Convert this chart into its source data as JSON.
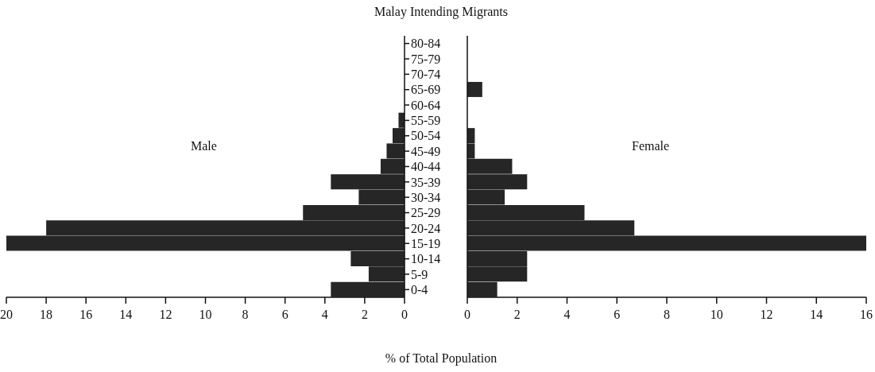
{
  "chart_data": [
    {
      "type": "bar",
      "orientation": "horizontal",
      "title": "Malay Intending Migrants",
      "xlabel": "% of Total Population",
      "categories": [
        "80-84",
        "75-79",
        "70-74",
        "65-69",
        "60-64",
        "55-59",
        "50-54",
        "45-49",
        "40-44",
        "35-39",
        "30-34",
        "25-29",
        "20-24",
        "15-19",
        "10-14",
        "5-9",
        "0-4"
      ],
      "series": [
        {
          "name": "Male",
          "color": "#262626",
          "values": [
            0,
            0,
            0,
            0,
            0,
            0.3,
            0.6,
            0.9,
            1.2,
            3.7,
            2.3,
            5.1,
            18,
            20,
            2.7,
            1.8,
            3.7
          ]
        }
      ],
      "xlim": [
        20,
        0
      ],
      "xticks": [
        20,
        18,
        16,
        14,
        12,
        10,
        8,
        6,
        4,
        2,
        0
      ],
      "grid": false,
      "legend": false
    },
    {
      "type": "bar",
      "orientation": "horizontal",
      "categories": [
        null,
        null,
        null,
        null,
        null,
        null,
        null,
        null,
        null,
        null,
        null,
        null,
        null,
        null,
        null,
        null,
        null
      ],
      "series": [
        {
          "name": "Female",
          "color": "#262626",
          "values": [
            0,
            0,
            0,
            0.6,
            0,
            0,
            0.3,
            0.3,
            1.8,
            2.4,
            1.5,
            4.7,
            6.7,
            16,
            2.4,
            2.4,
            1.2
          ]
        }
      ],
      "xlim": [
        0,
        16
      ],
      "xticks": [
        0,
        2,
        4,
        6,
        8,
        10,
        12,
        14,
        16
      ],
      "tick_labels": "x",
      "grid": false,
      "legend": false
    }
  ]
}
